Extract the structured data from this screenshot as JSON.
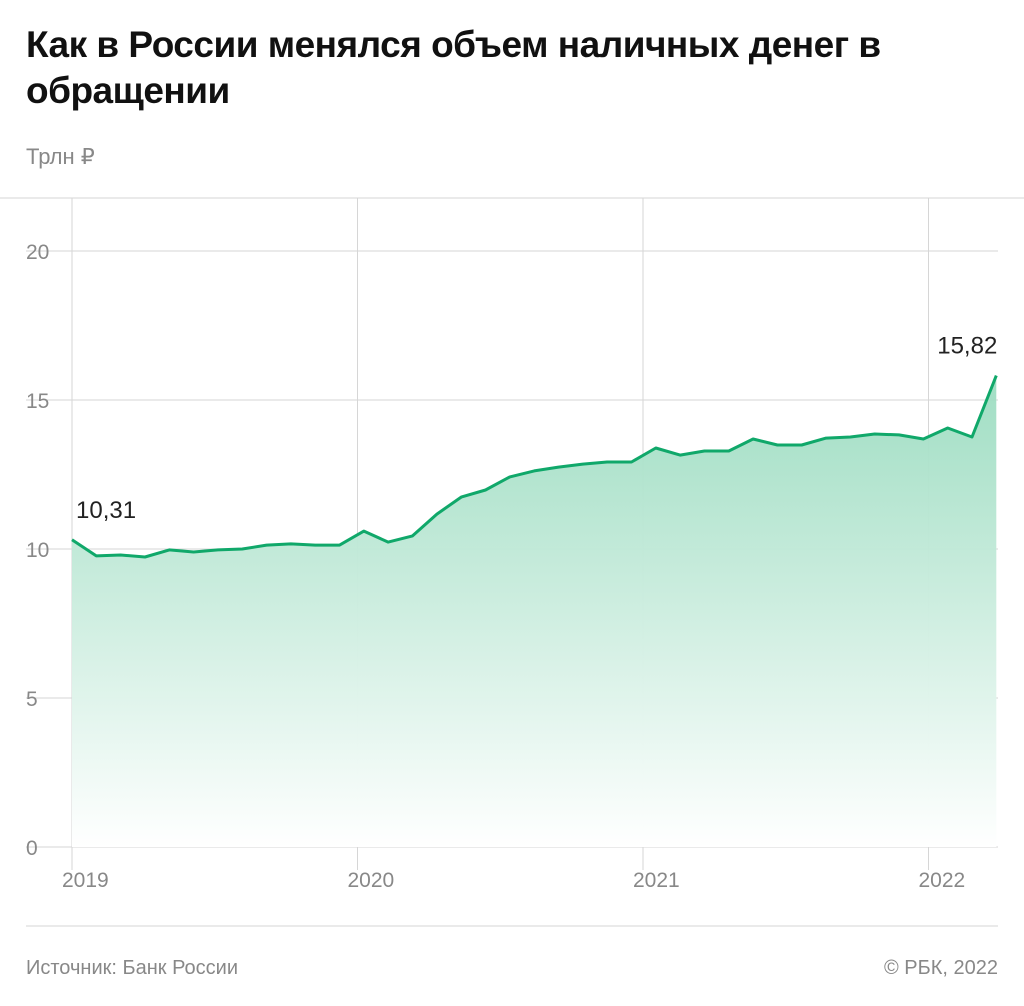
{
  "title": "Как в России менялся объем наличных денег в обращении",
  "footer": {
    "source": "Источник: Банк России",
    "copyright": "© РБК, 2022"
  },
  "colors": {
    "line": "#10a86a",
    "fill_top": "#9bdcc0",
    "grid": "#d6d6d6",
    "axis_text": "#888888"
  },
  "chart_data": {
    "type": "area",
    "title": "Как в России менялся объем наличных денег в обращении",
    "ylabel": "Трлн ₽",
    "xlabel": "",
    "ylim": [
      0,
      21.7
    ],
    "xlim": [
      2019,
      2022.245
    ],
    "grid": true,
    "y_ticks": [
      0,
      5,
      10,
      15,
      20
    ],
    "y_tick_labels": [
      "0",
      "5",
      "10",
      "15",
      "20"
    ],
    "x_ticks": [
      2019,
      2020,
      2021,
      2022
    ],
    "x_tick_labels": [
      "2019",
      "2020",
      "2021",
      "2022"
    ],
    "x_start": 2019,
    "x_step": 0.0852,
    "values": [
      10.31,
      9.77,
      9.8,
      9.73,
      9.97,
      9.9,
      9.97,
      10.0,
      10.13,
      10.17,
      10.13,
      10.13,
      10.6,
      10.23,
      10.44,
      11.17,
      11.74,
      11.98,
      12.42,
      12.62,
      12.75,
      12.85,
      12.92,
      12.92,
      13.39,
      13.15,
      13.29,
      13.29,
      13.69,
      13.49,
      13.49,
      13.72,
      13.76,
      13.86,
      13.83,
      13.69,
      14.06,
      13.76,
      15.82
    ],
    "annotations": [
      {
        "label": "10,31",
        "x": 2019,
        "y": 10.31
      },
      {
        "label": "15,82",
        "x": 2022.234,
        "y": 15.82
      }
    ]
  }
}
